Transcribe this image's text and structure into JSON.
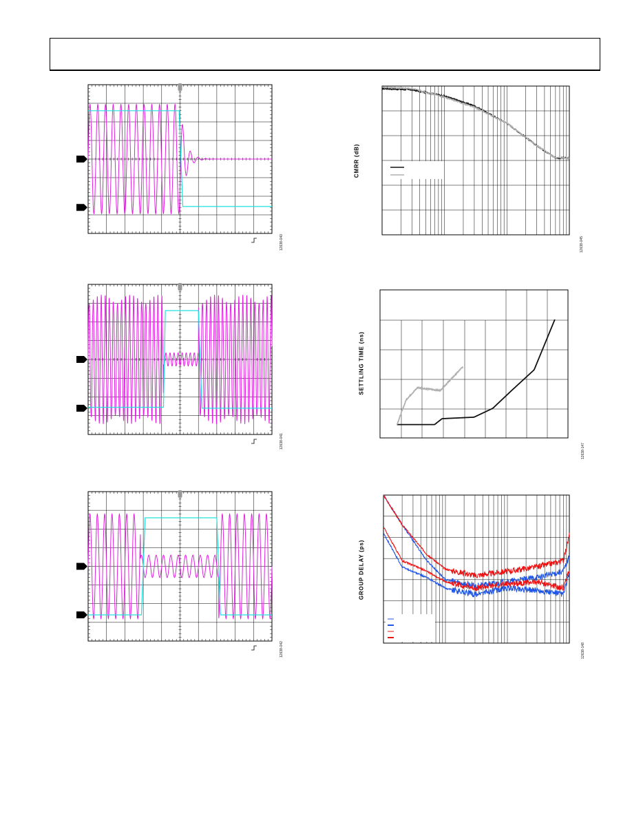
{
  "page": {
    "header": {
      "text": ""
    }
  },
  "figures": {
    "scope_1": {
      "fig_id": "12638-040"
    },
    "scope_2": {
      "fig_id": "12638-041"
    },
    "scope_3": {
      "fig_id": "12638-042"
    },
    "cmrr": {
      "fig_id": "12638-045",
      "ylabel": "CMRR (dB)"
    },
    "settling": {
      "fig_id": "12638-147",
      "ylabel": "SETTLING TIME (ns)"
    },
    "group_delay": {
      "fig_id": "12638-148",
      "ylabel": "GROUP DELAY (ps)"
    }
  },
  "colors": {
    "magenta": "#e020e0",
    "cyan": "#20e0e0",
    "black": "#111111",
    "gray": "#b0b0b0",
    "blue": "#1f55e6",
    "red": "#ee1111"
  },
  "chart_data": [
    {
      "type": "line",
      "title": "",
      "xlabel": "",
      "ylabel": "",
      "xlim": [
        0,
        10
      ],
      "ylim": [
        -4,
        4
      ],
      "grid": true,
      "series": [
        {
          "color": "#e020e0",
          "x": [
            0,
            0.8,
            1.6,
            2.4,
            3.2,
            4.0,
            4.8,
            5.0,
            5.4,
            6.0,
            7,
            8,
            9,
            10
          ],
          "y": [
            0,
            3,
            -3,
            3,
            -3,
            3,
            -3,
            3,
            -1,
            0.2,
            0,
            0,
            0,
            0
          ]
        },
        {
          "color": "#20e0e0",
          "x": [
            0,
            4.95,
            5.05,
            10
          ],
          "y": [
            2.6,
            2.6,
            -2.5,
            -2.5
          ]
        }
      ]
    },
    {
      "type": "line",
      "title": "",
      "xlabel": "",
      "ylabel": "",
      "xlim": [
        0,
        10
      ],
      "ylim": [
        -4,
        4
      ],
      "grid": true,
      "series": [
        {
          "color": "#e020e0",
          "x": [
            0,
            4.1,
            4.2,
            6.0,
            6.1,
            10
          ],
          "y": [
            3.2,
            3.2,
            0.4,
            0.4,
            3.2,
            3.2
          ]
        },
        {
          "color": "#20e0e0",
          "x": [
            0,
            4.1,
            4.2,
            6.0,
            6.2,
            10
          ],
          "y": [
            -2.5,
            -2.5,
            2.6,
            2.6,
            -2.6,
            -2.6
          ]
        }
      ]
    },
    {
      "type": "line",
      "title": "",
      "xlabel": "",
      "ylabel": "",
      "xlim": [
        0,
        10
      ],
      "ylim": [
        -4,
        4
      ],
      "grid": true,
      "series": [
        {
          "color": "#e020e0",
          "x": [
            0,
            2.8,
            3.0,
            7.0,
            7.2,
            10
          ],
          "y": [
            2.8,
            2.8,
            0.6,
            0.6,
            2.8,
            2.8
          ]
        },
        {
          "color": "#20e0e0",
          "x": [
            0,
            2.9,
            3.1,
            7.0,
            7.2,
            10
          ],
          "y": [
            -2.6,
            -2.6,
            2.6,
            2.6,
            -2.6,
            -2.6
          ]
        }
      ]
    },
    {
      "type": "line",
      "title": "",
      "xlabel": "",
      "ylabel": "CMRR (dB)",
      "xscale": "log",
      "xlim": [
        1,
        1000
      ],
      "ylim": [
        0,
        6
      ],
      "grid": true,
      "series": [
        {
          "color": "#111111",
          "x": [
            1,
            3,
            10,
            30,
            100,
            300,
            600,
            1000
          ],
          "y": [
            5.9,
            5.85,
            5.6,
            5.2,
            4.5,
            3.6,
            3.1,
            3.1
          ]
        },
        {
          "color": "#b0b0b0",
          "x": [
            1,
            3,
            10,
            30,
            100,
            300,
            600,
            1000
          ],
          "y": [
            5.95,
            5.9,
            5.55,
            5.15,
            4.5,
            3.6,
            3.1,
            3.1
          ]
        }
      ]
    },
    {
      "type": "line",
      "title": "",
      "xlabel": "",
      "ylabel": "SETTLING TIME (ns)",
      "xlim": [
        0,
        10
      ],
      "ylim": [
        0,
        5
      ],
      "grid": true,
      "series": [
        {
          "color": "#111111",
          "x": [
            0.9,
            2.9,
            3.3,
            5.0,
            6.0,
            7.0,
            8.2,
            9.3
          ],
          "y": [
            0.45,
            0.45,
            0.65,
            0.7,
            1.0,
            1.6,
            2.3,
            4.0
          ]
        },
        {
          "color": "#b0b0b0",
          "x": [
            0.9,
            1.4,
            2.0,
            3.2,
            4.4
          ],
          "y": [
            0.45,
            1.3,
            1.7,
            1.6,
            2.4
          ]
        }
      ]
    },
    {
      "type": "line",
      "title": "",
      "xlabel": "",
      "ylabel": "GROUP DELAY (ps)",
      "xscale": "log",
      "xlim": [
        1,
        1000
      ],
      "ylim": [
        0,
        7
      ],
      "grid": true,
      "series": [
        {
          "color": "#1f55e6",
          "x": [
            1,
            2,
            5,
            10,
            30,
            100,
            300,
            800,
            1000
          ],
          "y": [
            7,
            5.6,
            3.9,
            3.0,
            2.7,
            2.9,
            3.1,
            3.4,
            4.1
          ]
        },
        {
          "color": "#1f55e6",
          "x": [
            1,
            2,
            5,
            10,
            30,
            100,
            300,
            800,
            1000
          ],
          "y": [
            5.2,
            3.6,
            3.1,
            2.6,
            2.3,
            2.6,
            2.5,
            2.3,
            3.3
          ]
        },
        {
          "color": "#ee1111",
          "x": [
            1,
            2,
            5,
            10,
            30,
            100,
            300,
            800,
            1000
          ],
          "y": [
            7,
            5.6,
            4.2,
            3.5,
            3.2,
            3.4,
            3.6,
            3.9,
            5.1
          ]
        },
        {
          "color": "#ee1111",
          "x": [
            1,
            2,
            5,
            10,
            30,
            100,
            300,
            800,
            1000
          ],
          "y": [
            5.5,
            3.9,
            3.4,
            2.9,
            2.6,
            2.8,
            2.9,
            2.6,
            3.5
          ]
        }
      ]
    }
  ]
}
